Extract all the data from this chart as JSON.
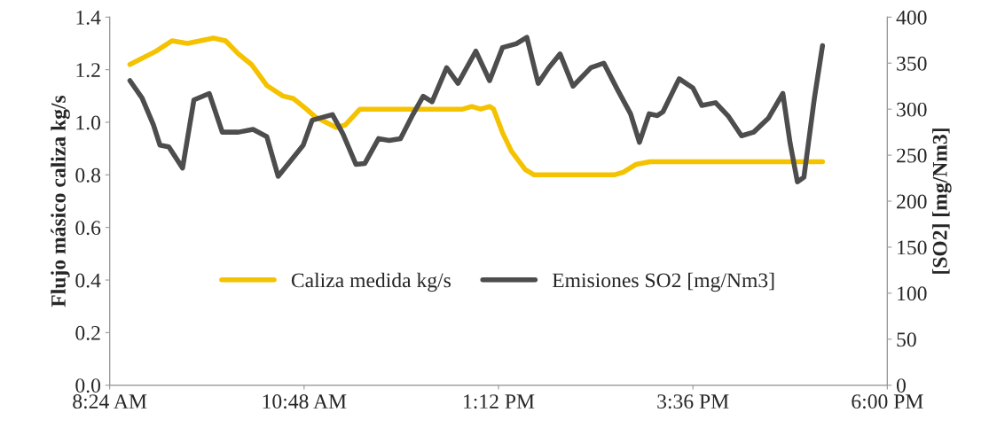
{
  "chart_data": {
    "type": "line",
    "ylabel": "Flujo másico caliza kg/s",
    "y2label": "[SO2] [mg/Nm3]",
    "xlim": [
      8.4,
      18.0
    ],
    "xticks": [
      {
        "value": 8.4,
        "label": "8:24 AM"
      },
      {
        "value": 10.8,
        "label": "10:48 AM"
      },
      {
        "value": 13.2,
        "label": "1:12 PM"
      },
      {
        "value": 15.6,
        "label": "3:36 PM"
      },
      {
        "value": 18.0,
        "label": "6:00 PM"
      }
    ],
    "ylim": [
      0,
      1.4
    ],
    "yticks": [
      {
        "value": 0,
        "label": "0.0"
      },
      {
        "value": 0.2,
        "label": "0.2"
      },
      {
        "value": 0.4,
        "label": "0.4"
      },
      {
        "value": 0.6,
        "label": "0.6"
      },
      {
        "value": 0.8,
        "label": "0.8"
      },
      {
        "value": 1.0,
        "label": "1.0"
      },
      {
        "value": 1.2,
        "label": "1.2"
      },
      {
        "value": 1.4,
        "label": "1.4"
      }
    ],
    "y2lim": [
      0,
      400
    ],
    "y2ticks": [
      0,
      50,
      100,
      150,
      200,
      250,
      300,
      350,
      400
    ],
    "grid": false,
    "legend": "center",
    "marker": "none",
    "line_style": "solid",
    "series": [
      {
        "name": "Caliza medida kg/s",
        "color": "#f5c200",
        "x": [
          8.65,
          8.97,
          9.17,
          9.36,
          9.68,
          9.83,
          9.99,
          10.15,
          10.34,
          10.54,
          10.67,
          10.83,
          10.94,
          11.2,
          11.31,
          11.49,
          11.66,
          11.88,
          12.21,
          12.54,
          12.76,
          12.87,
          12.98,
          13.09,
          13.14,
          13.25,
          13.36,
          13.53,
          13.64,
          13.86,
          14.19,
          14.63,
          14.74,
          14.9,
          15.07,
          15.4,
          15.84,
          16.39,
          16.93,
          17.2
        ],
        "values": [
          1.22,
          1.27,
          1.31,
          1.3,
          1.32,
          1.31,
          1.26,
          1.22,
          1.14,
          1.1,
          1.09,
          1.05,
          1.02,
          0.98,
          0.99,
          1.05,
          1.05,
          1.05,
          1.05,
          1.05,
          1.05,
          1.06,
          1.05,
          1.06,
          1.05,
          0.96,
          0.89,
          0.82,
          0.8,
          0.8,
          0.8,
          0.8,
          0.81,
          0.84,
          0.85,
          0.85,
          0.85,
          0.85,
          0.85,
          0.85
        ]
      },
      {
        "name": "Emisiones SO2 [mg/Nm3]",
        "color": "#4d4d4d",
        "axis": "y2",
        "x": [
          8.65,
          8.8,
          8.94,
          9.02,
          9.13,
          9.3,
          9.44,
          9.63,
          9.79,
          9.99,
          10.17,
          10.34,
          10.48,
          10.79,
          10.9,
          11.15,
          11.28,
          11.44,
          11.55,
          11.72,
          11.85,
          11.99,
          12.13,
          12.27,
          12.38,
          12.56,
          12.7,
          12.92,
          13.09,
          13.25,
          13.42,
          13.55,
          13.69,
          13.82,
          13.96,
          14.12,
          14.34,
          14.5,
          14.67,
          14.83,
          14.94,
          15.06,
          15.16,
          15.23,
          15.43,
          15.6,
          15.71,
          15.88,
          16.04,
          16.2,
          16.35,
          16.53,
          16.71,
          16.8,
          16.89,
          16.97,
          17.1,
          17.2
        ],
        "values": [
          331,
          312,
          283,
          261,
          259,
          236,
          310,
          317,
          275,
          275,
          278,
          270,
          227,
          261,
          288,
          294,
          273,
          240,
          241,
          268,
          266,
          268,
          292,
          314,
          308,
          345,
          328,
          363,
          331,
          367,
          371,
          378,
          328,
          345,
          360,
          325,
          345,
          350,
          321,
          295,
          264,
          295,
          293,
          297,
          333,
          323,
          304,
          307,
          292,
          271,
          275,
          290,
          317,
          263,
          221,
          226,
          312,
          369
        ]
      }
    ]
  }
}
